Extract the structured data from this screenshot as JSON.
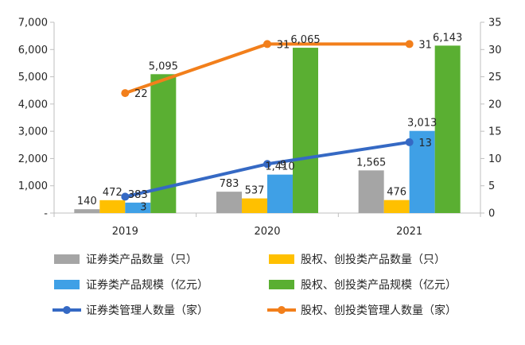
{
  "chart_data": {
    "type": "bar",
    "categories": [
      "2019",
      "2020",
      "2021"
    ],
    "y_left": {
      "min": 0,
      "max": 7000,
      "ticks": [
        "-",
        "1,000",
        "2,000",
        "3,000",
        "4,000",
        "5,000",
        "6,000",
        "7,000"
      ]
    },
    "y_right": {
      "min": 0,
      "max": 35,
      "ticks": [
        "0",
        "5",
        "10",
        "15",
        "20",
        "25",
        "30",
        "35"
      ]
    },
    "grid": false,
    "legend_position": "bottom",
    "series": [
      {
        "name": "证券类产品数量（只）",
        "kind": "bar",
        "axis": "left",
        "color": "#a5a5a5",
        "values": [
          140,
          783,
          1565
        ],
        "labels": [
          "140",
          "783",
          "1,565"
        ]
      },
      {
        "name": "股权、创投类产品数量（只）",
        "kind": "bar",
        "axis": "left",
        "color": "#ffc000",
        "values": [
          472,
          537,
          476
        ],
        "labels": [
          "472",
          "537",
          "476"
        ]
      },
      {
        "name": "证券类产品规模（亿元）",
        "kind": "bar",
        "axis": "left",
        "color": "#3fa0e6",
        "values": [
          383,
          1410,
          3013
        ],
        "labels": [
          "383",
          "1,410",
          "3,013"
        ]
      },
      {
        "name": "股权、创投类产品规模（亿元）",
        "kind": "bar",
        "axis": "left",
        "color": "#5aaf32",
        "values": [
          5095,
          6065,
          6143
        ],
        "labels": [
          "5,095",
          "6,065",
          "6,143"
        ]
      },
      {
        "name": "证券类管理人数量（家）",
        "kind": "line",
        "axis": "right",
        "color": "#3569c4",
        "values": [
          3,
          9,
          13
        ],
        "labels": [
          "3",
          "9",
          "13"
        ]
      },
      {
        "name": "股权、创投类管理人数量（家）",
        "kind": "line",
        "axis": "right",
        "color": "#f27f1b",
        "values": [
          22,
          31,
          31
        ],
        "labels": [
          "22",
          "31",
          "31"
        ]
      }
    ]
  }
}
